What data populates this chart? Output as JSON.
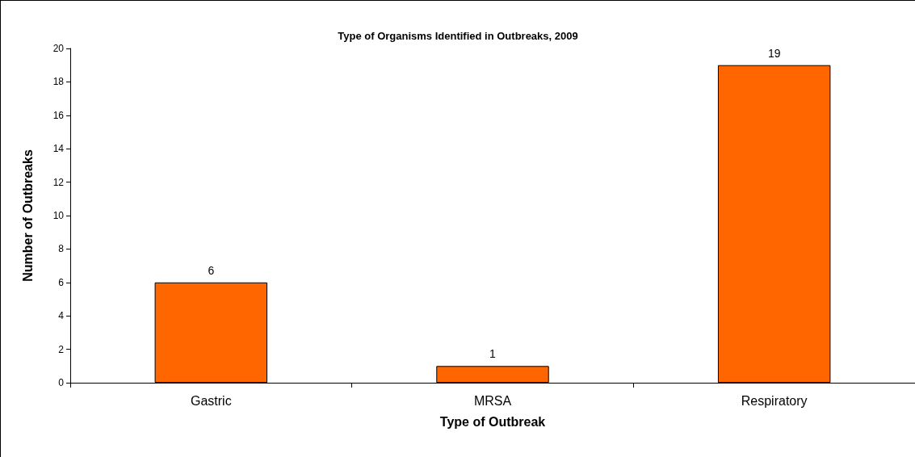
{
  "chart_data": {
    "type": "bar",
    "title": "Type of Organisms Identified in Outbreaks, 2009",
    "xlabel": "Type of Outbreak",
    "ylabel": "Number of Outbreaks",
    "categories": [
      "Gastric",
      "MRSA",
      "Respiratory"
    ],
    "values": [
      6,
      1,
      19
    ],
    "color": "#ff6600",
    "ylim": [
      0,
      20
    ],
    "yticks": [
      0,
      2,
      4,
      6,
      8,
      10,
      12,
      14,
      16,
      18,
      20
    ],
    "grid": false,
    "data_labels": true
  }
}
